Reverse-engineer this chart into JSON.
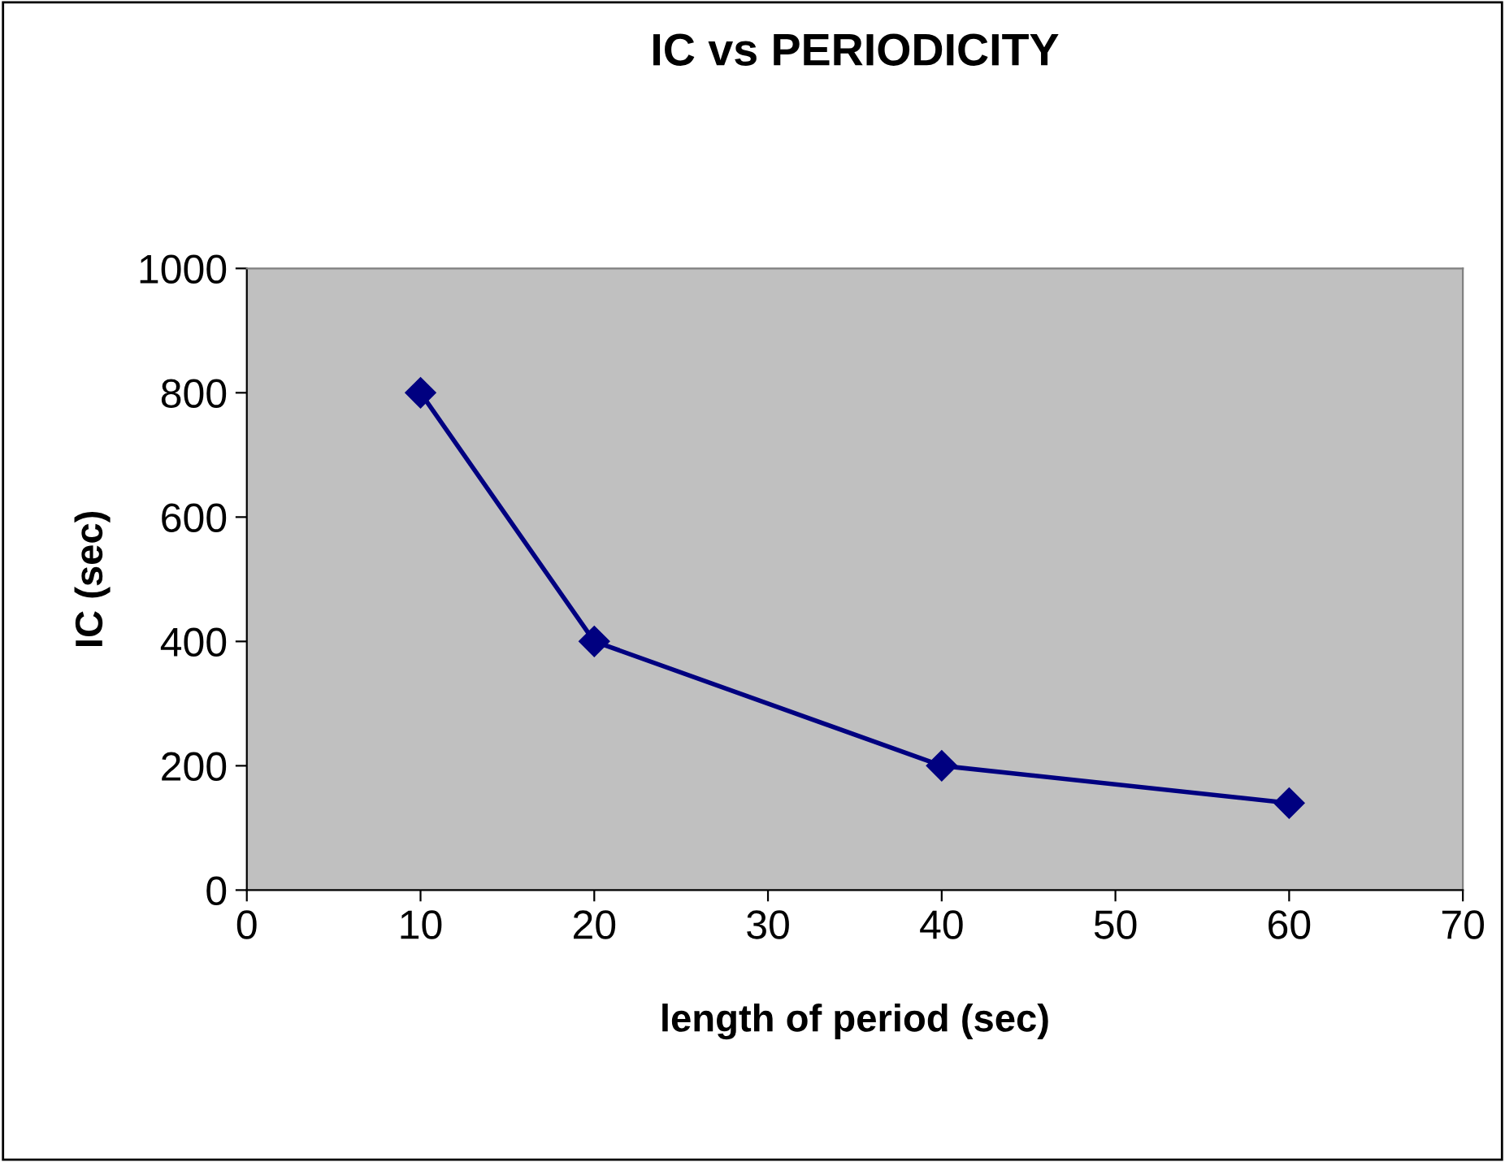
{
  "chart_data": {
    "type": "line",
    "title": "IC vs PERIODICITY",
    "xlabel": "length of period (sec)",
    "ylabel": "IC (sec)",
    "x": [
      10,
      20,
      40,
      60
    ],
    "series": [
      {
        "color": "#000080",
        "values": [
          800,
          400,
          200,
          140
        ]
      }
    ],
    "xlim": [
      0,
      70
    ],
    "xticks": [
      0,
      10,
      20,
      30,
      40,
      50,
      60,
      70
    ],
    "ylim": [
      0,
      1000
    ],
    "yticks": [
      0,
      200,
      400,
      600,
      800,
      1000
    ],
    "marker": "diamond",
    "line_style": "solid",
    "grid": false,
    "legend": false
  }
}
